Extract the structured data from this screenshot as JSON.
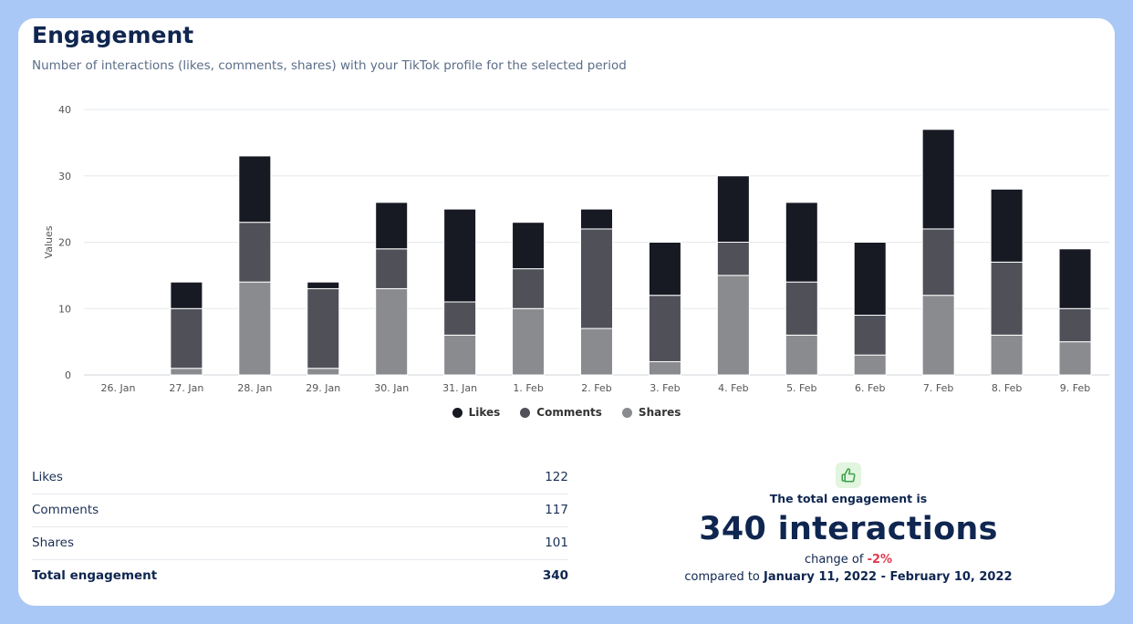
{
  "header": {
    "title": "Engagement",
    "subtitle": "Number of interactions (likes, comments, shares) with your TikTok profile for the selected period"
  },
  "chart_data": {
    "type": "bar",
    "stacked": true,
    "categories": [
      "26. Jan",
      "27. Jan",
      "28. Jan",
      "29. Jan",
      "30. Jan",
      "31. Jan",
      "1. Feb",
      "2. Feb",
      "3. Feb",
      "4. Feb",
      "5. Feb",
      "6. Feb",
      "7. Feb",
      "8. Feb",
      "9. Feb"
    ],
    "series": [
      {
        "name": "Shares",
        "color": "#8a8b8f",
        "values": [
          0,
          1,
          14,
          1,
          13,
          6,
          10,
          7,
          2,
          15,
          6,
          3,
          12,
          6,
          5
        ]
      },
      {
        "name": "Comments",
        "color": "#4f5058",
        "values": [
          0,
          9,
          9,
          12,
          6,
          5,
          6,
          15,
          10,
          5,
          8,
          6,
          10,
          11,
          5
        ]
      },
      {
        "name": "Likes",
        "color": "#171923",
        "values": [
          0,
          4,
          10,
          1,
          7,
          14,
          7,
          3,
          8,
          10,
          12,
          11,
          15,
          11,
          9
        ]
      }
    ],
    "legend_order": [
      "Likes",
      "Comments",
      "Shares"
    ],
    "ylabel": "Values",
    "xlabel": "",
    "ylim": [
      0,
      40
    ],
    "yticks": [
      0,
      10,
      20,
      30,
      40
    ],
    "grid": true,
    "legend_position": "bottom-center"
  },
  "stats": {
    "rows": [
      {
        "label": "Likes",
        "value": "122"
      },
      {
        "label": "Comments",
        "value": "117"
      },
      {
        "label": "Shares",
        "value": "101"
      }
    ],
    "total": {
      "label": "Total engagement",
      "value": "340"
    }
  },
  "summary": {
    "icon": "thumbs-up-icon",
    "label": "The total engagement is",
    "big": "340 interactions",
    "change_prefix": "change of ",
    "change_value": "-2%",
    "compare_prefix": "compared to ",
    "compare_range": "January 11, 2022 - February 10, 2022"
  }
}
